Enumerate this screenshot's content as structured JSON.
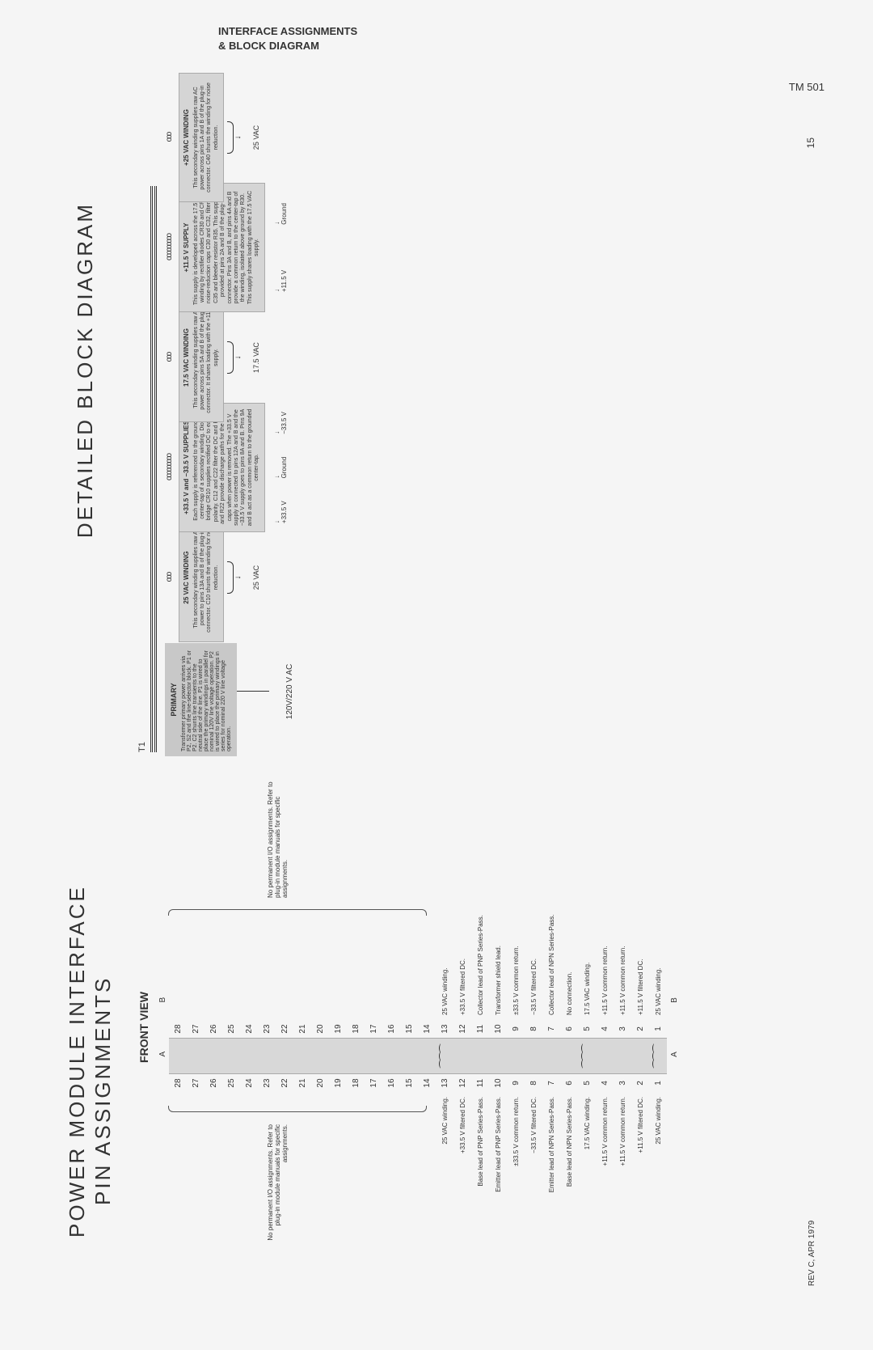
{
  "header": {
    "line1": "INTERFACE ASSIGNMENTS",
    "line2": "& BLOCK DIAGRAM",
    "model": "TM 501"
  },
  "titles": {
    "main": "POWER MODULE INTERFACE",
    "sub": "PIN ASSIGNMENTS",
    "right": "DETAILED BLOCK DIAGRAM"
  },
  "frontView": "FRONT VIEW",
  "colA": "A",
  "colB": "B",
  "pins": [
    {
      "n": 28,
      "a": "",
      "b": ""
    },
    {
      "n": 27,
      "a": "",
      "b": ""
    },
    {
      "n": 26,
      "a": "",
      "b": ""
    },
    {
      "n": 25,
      "a": "",
      "b": ""
    },
    {
      "n": 24,
      "a": "",
      "b": ""
    },
    {
      "n": 23,
      "a": "",
      "b": ""
    },
    {
      "n": 22,
      "a": "",
      "b": ""
    },
    {
      "n": 21,
      "a": "",
      "b": ""
    },
    {
      "n": 20,
      "a": "",
      "b": ""
    },
    {
      "n": 19,
      "a": "",
      "b": ""
    },
    {
      "n": 18,
      "a": "",
      "b": ""
    },
    {
      "n": 17,
      "a": "",
      "b": ""
    },
    {
      "n": 16,
      "a": "",
      "b": ""
    },
    {
      "n": 15,
      "a": "",
      "b": ""
    },
    {
      "n": 14,
      "a": "",
      "b": ""
    },
    {
      "n": 13,
      "a": "25 VAC winding.",
      "b": "25 VAC winding.",
      "coil": true
    },
    {
      "n": 12,
      "a": "+33.5 V filtered DC.",
      "b": "+33.5 V filtered DC."
    },
    {
      "n": 11,
      "a": "Base lead of PNP Series-Pass.",
      "b": "Collector lead of PNP Series-Pass."
    },
    {
      "n": 10,
      "a": "Emitter lead of PNP Series-Pass.",
      "b": "Transformer shield lead."
    },
    {
      "n": 9,
      "a": "±33.5 V common return.",
      "b": "±33.5 V common return."
    },
    {
      "n": 8,
      "a": "−33.5 V filtered DC.",
      "b": "−33.5 V filtered DC."
    },
    {
      "n": 7,
      "a": "Emitter lead of NPN Series-Pass.",
      "b": "Collector lead of NPN Series-Pass."
    },
    {
      "n": 6,
      "a": "Base lead of NPN Series-Pass.",
      "b": "No connection."
    },
    {
      "n": 5,
      "a": "17.5 VAC winding.",
      "b": "17.5 VAC winding.",
      "coil": true
    },
    {
      "n": 4,
      "a": "+11.5 V common return.",
      "b": "+11.5 V common return."
    },
    {
      "n": 3,
      "a": "+11.5 V common return.",
      "b": "+11.5 V common return."
    },
    {
      "n": 2,
      "a": "+11.5 V filtered DC.",
      "b": "+11.5 V filtered DC."
    },
    {
      "n": 1,
      "a": "25 VAC winding.",
      "b": "25 VAC winding.",
      "coil": true
    }
  ],
  "noPermNote": "No permanent I/O assignments. Refer to plug-in module manuals for specific assignments.",
  "t1": "T1",
  "primary": {
    "title": "PRIMARY",
    "text": "Transformer primary power arrives via P2, S2 and the line-selector block. P1 or P2. C2 shunts line transients to the neutral side of the line. P1 is wired to place the primary windings in parallel for nominal 120V line voltage operation. P2 is wired to place the primary windings in series for nominal 220 V line voltage operation.",
    "voltage": "120V/220 V AC"
  },
  "windings": [
    {
      "dots": "ooo",
      "title": "25 VAC WINDING",
      "text": "This secondary winding supplies raw AC power to pins 13A and B of the plug-in connector. C10 shunts the winding for noise reduction.",
      "out": "25 VAC",
      "brace": true
    },
    {
      "dots": "ooooooooo",
      "title": "+33.5 V and −33.5 V SUPPLIES",
      "text": "Each supply is referenced to the grounded center-tap of a secondary winding. Diode bridge CR10 supplies rectified DC to each polarity. C12 and C22 filter the DC and R12 and R22 provide discharge paths for the filter caps when power is removed. The +33.5 V supply is connected to pins 12A and B and the −33.5 V supply goes to pins 8A and B. Pins 9A and B act as a common return to the grounded center-tap.",
      "out": "+33.5 V",
      "out2": "Ground",
      "out3": "−33.5 V"
    },
    {
      "dots": "ooo",
      "title": "17.5 VAC WINDING",
      "text": "This secondary winding supplies raw AC power across pins 5A and B of the plug-in connector. It shares loading with the +11.5 V supply.",
      "out": "17.5 VAC",
      "brace": true
    },
    {
      "dots": "ooooooooo",
      "title": "+11.5 V SUPPLY",
      "text": "This supply is developed across the 17.5 VAC winding by rectifier diodes CR30 and CR32, noise-reduction caps C30 and C32, filter cap C35 and bleeder resistor R35. This supply is provided at pins 2A and B of the plug-in connector. Pins 3A and B, and pins 4A and B provide a common return to the center-tap of the winding, isolated above ground by R30. This supply shares loading with the 17.5 VAC supply.",
      "out": "+11.5 V",
      "out2": "Ground"
    },
    {
      "dots": "ooo",
      "title": "+25 VAC WINDING",
      "text": "This secondary winding supplies raw AC power across pins 1A and B of the plug-in connector. C40 shunts the winding for noise reduction.",
      "out": "25 VAC",
      "brace": true
    }
  ],
  "footer": {
    "rev": "REV C, APR 1979",
    "page": "15"
  }
}
